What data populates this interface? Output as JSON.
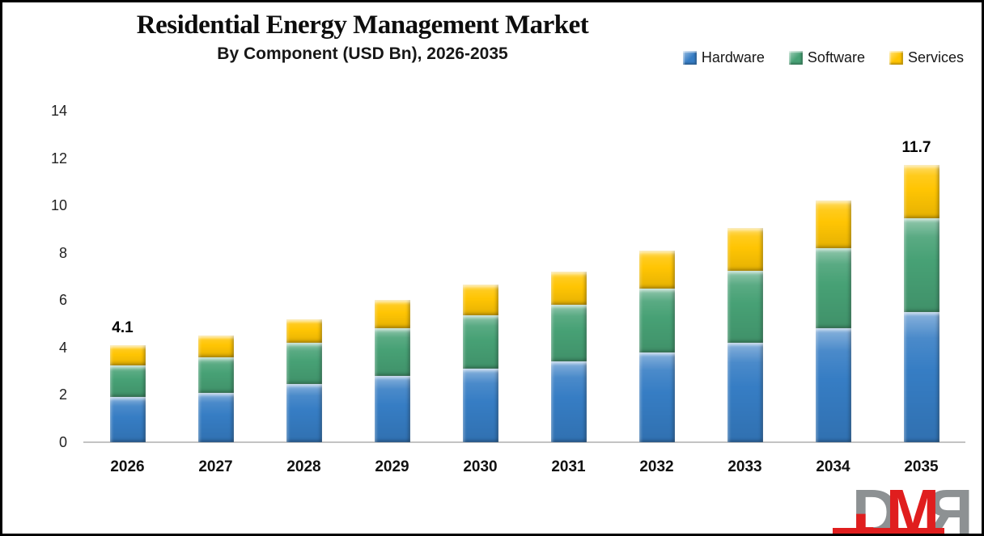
{
  "header": {
    "title": "Residential Energy Management Market",
    "subtitle": "By Component (USD Bn), 2026-2035"
  },
  "chart_data": {
    "type": "bar",
    "stacked": true,
    "title": "Residential Energy Management Market",
    "subtitle": "By Component (USD Bn), 2026-2035",
    "xlabel": "",
    "ylabel": "",
    "categories": [
      "2026",
      "2027",
      "2028",
      "2029",
      "2030",
      "2031",
      "2032",
      "2033",
      "2034",
      "2035"
    ],
    "series": [
      {
        "name": "Hardware",
        "color": "#367dc4",
        "values": [
          1.9,
          2.1,
          2.45,
          2.8,
          3.1,
          3.4,
          3.8,
          4.2,
          4.8,
          5.5
        ]
      },
      {
        "name": "Software",
        "color": "#47a175",
        "values": [
          1.35,
          1.5,
          1.75,
          2.0,
          2.25,
          2.4,
          2.7,
          3.05,
          3.4,
          3.95
        ]
      },
      {
        "name": "Services",
        "color": "#ffc503",
        "values": [
          0.85,
          0.9,
          1.0,
          1.2,
          1.3,
          1.4,
          1.6,
          1.8,
          2.0,
          2.25
        ]
      }
    ],
    "totals": [
      4.1,
      4.5,
      5.2,
      6.0,
      6.65,
      7.2,
      8.1,
      9.05,
      10.2,
      11.7
    ],
    "annotations": [
      {
        "category": "2026",
        "label": "4.1"
      },
      {
        "category": "2035",
        "label": "11.7"
      }
    ],
    "ylim": [
      0,
      14
    ],
    "yticks": [
      0,
      2,
      4,
      6,
      8,
      10,
      12,
      14
    ],
    "grid": false,
    "legend_position": "top-right"
  },
  "legend": {
    "items": [
      "Hardware",
      "Software",
      "Services"
    ]
  },
  "logo": {
    "d": "D",
    "m": "M",
    "r": "R",
    "gray": "#8d9193",
    "red": "#e01e1e"
  }
}
